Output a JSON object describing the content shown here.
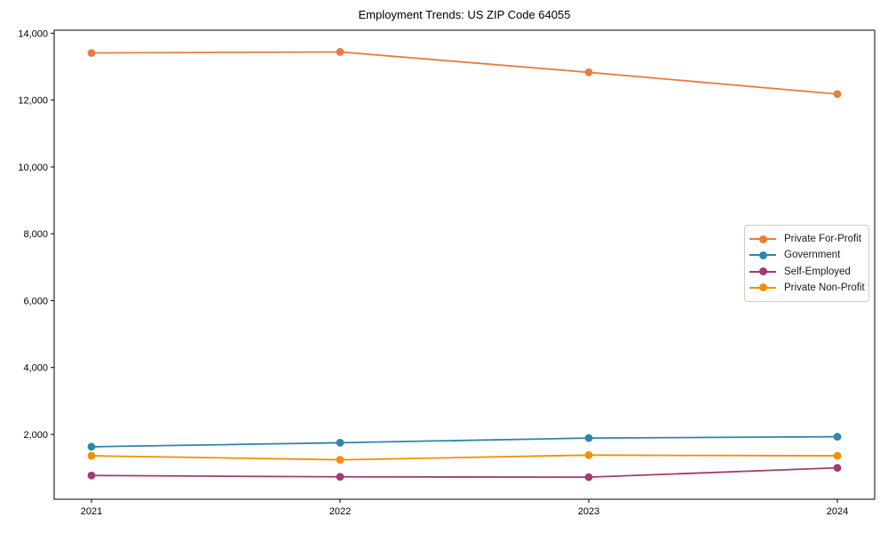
{
  "chart_data": {
    "type": "line",
    "title": "Employment Trends: US ZIP Code 64055",
    "x": [
      2021,
      2022,
      2023,
      2024
    ],
    "x_tick_labels": [
      "2021",
      "2022",
      "2023",
      "2024"
    ],
    "series": [
      {
        "name": "Private For-Profit",
        "color": "#E87D3E",
        "values": [
          13410,
          13440,
          12830,
          12180
        ]
      },
      {
        "name": "Government",
        "color": "#2E86AB",
        "values": [
          1630,
          1750,
          1890,
          1930
        ]
      },
      {
        "name": "Self-Employed",
        "color": "#A23B72",
        "values": [
          770,
          730,
          720,
          1000
        ]
      },
      {
        "name": "Private Non-Profit",
        "color": "#F18F01",
        "values": [
          1360,
          1240,
          1380,
          1360
        ]
      }
    ],
    "yticks": [
      2000,
      4000,
      6000,
      8000,
      10000,
      12000,
      14000
    ],
    "xlim": [
      2020.85,
      2024.15
    ],
    "ylim": [
      60,
      14090
    ],
    "xlabel": "",
    "ylabel": "",
    "grid": false,
    "legend_position": "center right",
    "marker": "circle",
    "axis_color": "#000000",
    "background_color": "#ffffff"
  }
}
